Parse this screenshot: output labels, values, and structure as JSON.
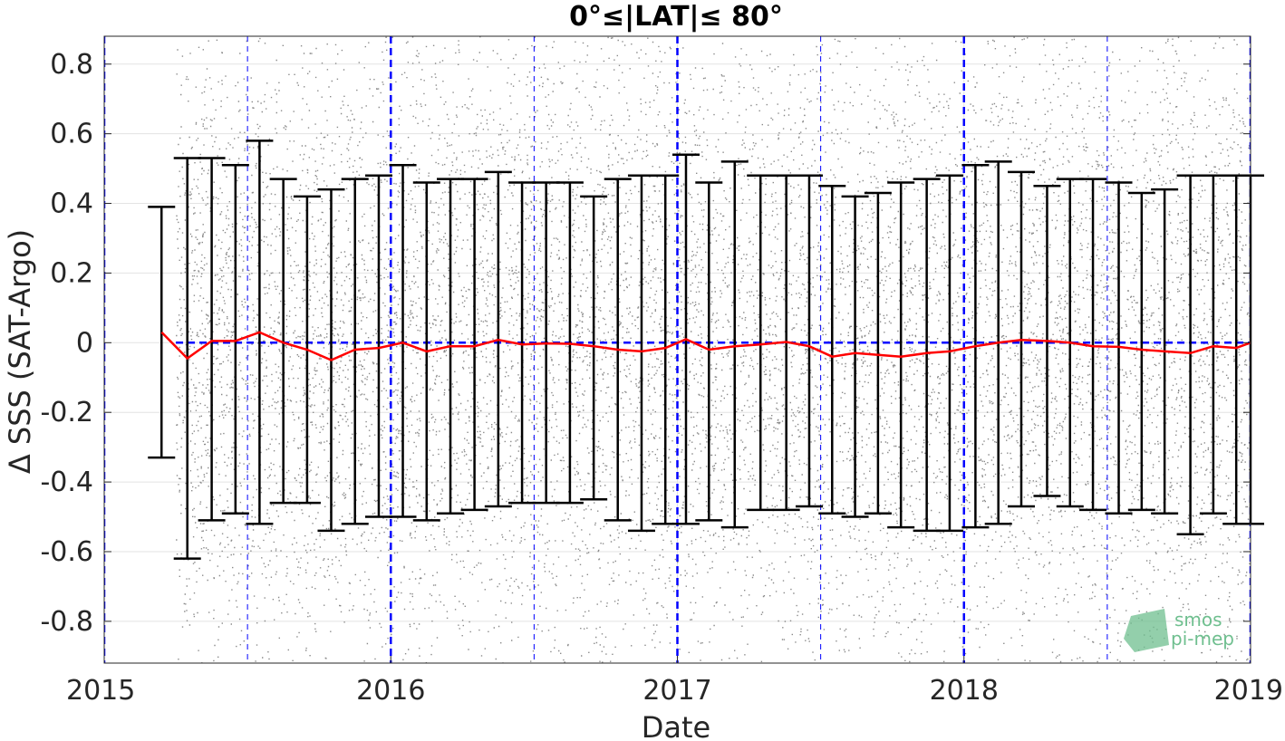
{
  "chart_data": {
    "type": "scatter",
    "title": "0°≤|LAT|≤ 80°",
    "xlabel": "Date",
    "ylabel": "Δ SSS (SAT-Argo)",
    "xlim": [
      2015.0,
      2019.0
    ],
    "ylim": [
      -0.92,
      0.88
    ],
    "xticks": [
      "2015",
      "2016",
      "2017",
      "2018",
      "2019"
    ],
    "xtick_values": [
      2015,
      2016,
      2017,
      2018,
      2019
    ],
    "yticks": [
      "-0.8",
      "-0.6",
      "-0.4",
      "-0.2",
      "0",
      "0.2",
      "0.4",
      "0.6",
      "0.8"
    ],
    "ytick_values": [
      -0.8,
      -0.6,
      -0.4,
      -0.2,
      0,
      0.2,
      0.4,
      0.6,
      0.8
    ],
    "grid": true,
    "colors": {
      "scatter": "#8a8a8a",
      "errorbar": "#000000",
      "mean_line": "#ff0000",
      "reference_lines": "#0000ff",
      "logo": "#6fbf8f"
    },
    "scatter_x_range": [
      2015.25,
      2019.0
    ],
    "year_lines": [
      2015,
      2016,
      2017,
      2018,
      2019
    ],
    "half_year_lines": [
      2015.5,
      2016.5,
      2017.5,
      2018.5
    ],
    "zero_line": 0,
    "series": [
      {
        "name": "monthly mean",
        "x": [
          2015.2,
          2015.29,
          2015.375,
          2015.458,
          2015.542,
          2015.625,
          2015.708,
          2015.792,
          2015.875,
          2015.958,
          2016.042,
          2016.125,
          2016.208,
          2016.292,
          2016.375,
          2016.458,
          2016.542,
          2016.625,
          2016.708,
          2016.792,
          2016.875,
          2016.958,
          2017.03,
          2017.11,
          2017.2,
          2017.29,
          2017.38,
          2017.46,
          2017.54,
          2017.62,
          2017.7,
          2017.78,
          2017.87,
          2017.95,
          2018.04,
          2018.12,
          2018.2,
          2018.29,
          2018.37,
          2018.45,
          2018.54,
          2018.62,
          2018.7,
          2018.79,
          2018.87,
          2018.95,
          2019.0
        ],
        "y": [
          0.03,
          -0.045,
          0.005,
          0.005,
          0.03,
          0.0,
          -0.02,
          -0.05,
          -0.02,
          -0.015,
          0.0,
          -0.025,
          -0.01,
          -0.01,
          0.008,
          -0.005,
          -0.002,
          -0.003,
          -0.01,
          -0.02,
          -0.025,
          -0.015,
          0.01,
          -0.02,
          -0.01,
          -0.005,
          0.002,
          -0.01,
          -0.04,
          -0.03,
          -0.035,
          -0.04,
          -0.03,
          -0.025,
          -0.01,
          0.0,
          0.008,
          0.005,
          0.0,
          -0.01,
          -0.012,
          -0.02,
          -0.025,
          -0.03,
          -0.01,
          -0.015,
          0.0
        ],
        "err_low": [
          -0.33,
          -0.62,
          -0.51,
          -0.49,
          -0.52,
          -0.46,
          -0.46,
          -0.54,
          -0.52,
          -0.5,
          -0.5,
          -0.51,
          -0.49,
          -0.48,
          -0.47,
          -0.46,
          -0.46,
          -0.46,
          -0.45,
          -0.51,
          -0.54,
          -0.52,
          -0.52,
          -0.51,
          -0.53,
          -0.48,
          -0.48,
          -0.47,
          -0.49,
          -0.5,
          -0.49,
          -0.53,
          -0.54,
          -0.54,
          -0.53,
          -0.52,
          -0.47,
          -0.44,
          -0.47,
          -0.48,
          -0.49,
          -0.48,
          -0.49,
          -0.55,
          -0.49,
          -0.52,
          -0.52
        ],
        "err_high": [
          0.39,
          0.53,
          0.53,
          0.51,
          0.58,
          0.47,
          0.42,
          0.44,
          0.47,
          0.48,
          0.51,
          0.46,
          0.47,
          0.47,
          0.49,
          0.46,
          0.46,
          0.46,
          0.42,
          0.47,
          0.48,
          0.48,
          0.54,
          0.46,
          0.52,
          0.48,
          0.48,
          0.48,
          0.45,
          0.42,
          0.43,
          0.46,
          0.47,
          0.48,
          0.51,
          0.52,
          0.49,
          0.45,
          0.47,
          0.47,
          0.46,
          0.43,
          0.44,
          0.48,
          0.48,
          0.48,
          0.48
        ]
      }
    ]
  },
  "logo": {
    "line1": "smos",
    "line2": "pi-mep"
  }
}
